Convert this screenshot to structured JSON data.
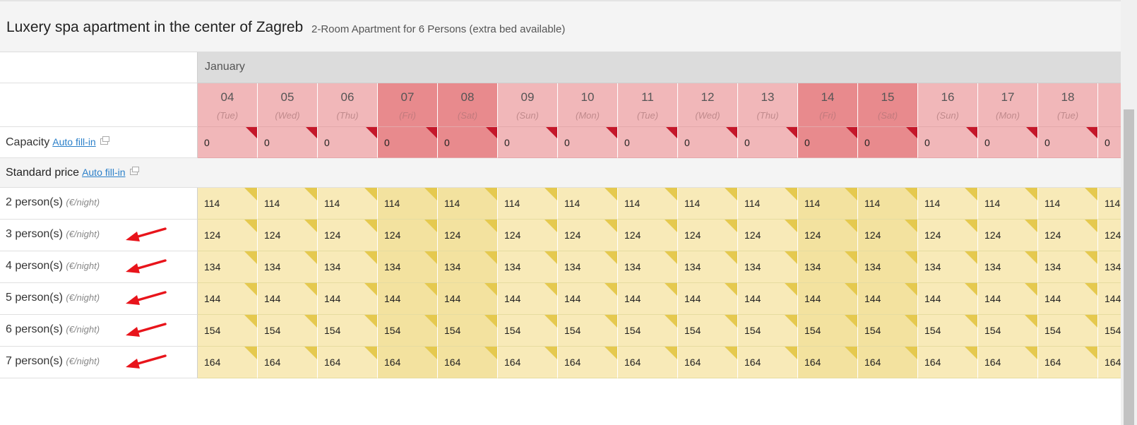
{
  "header": {
    "title": "Luxery spa apartment in the center of Zagreb",
    "subtitle": "2-Room Apartment for 6 Persons (extra bed available)"
  },
  "calendar": {
    "month": "January",
    "days": [
      {
        "d": "04",
        "wd": "(Tue)",
        "weekend": false
      },
      {
        "d": "05",
        "wd": "(Wed)",
        "weekend": false
      },
      {
        "d": "06",
        "wd": "(Thu)",
        "weekend": false
      },
      {
        "d": "07",
        "wd": "(Fri)",
        "weekend": true
      },
      {
        "d": "08",
        "wd": "(Sat)",
        "weekend": true
      },
      {
        "d": "09",
        "wd": "(Sun)",
        "weekend": false
      },
      {
        "d": "10",
        "wd": "(Mon)",
        "weekend": false
      },
      {
        "d": "11",
        "wd": "(Tue)",
        "weekend": false
      },
      {
        "d": "12",
        "wd": "(Wed)",
        "weekend": false
      },
      {
        "d": "13",
        "wd": "(Thu)",
        "weekend": false
      },
      {
        "d": "14",
        "wd": "(Fri)",
        "weekend": true
      },
      {
        "d": "15",
        "wd": "(Sat)",
        "weekend": true
      },
      {
        "d": "16",
        "wd": "(Sun)",
        "weekend": false
      },
      {
        "d": "17",
        "wd": "(Mon)",
        "weekend": false
      },
      {
        "d": "18",
        "wd": "(Tue)",
        "weekend": false
      },
      {
        "d": "",
        "wd": "",
        "weekend": false
      }
    ]
  },
  "capacity": {
    "label": "Capacity",
    "autofill": "Auto fill-in",
    "values": [
      "0",
      "0",
      "0",
      "0",
      "0",
      "0",
      "0",
      "0",
      "0",
      "0",
      "0",
      "0",
      "0",
      "0",
      "0",
      "0"
    ]
  },
  "standard_price": {
    "label": "Standard price",
    "autofill": "Auto fill-in"
  },
  "unit_label": "(€/night)",
  "price_rows": [
    {
      "label": "2 person(s)",
      "price": "114",
      "arrow": false
    },
    {
      "label": "3 person(s)",
      "price": "124",
      "arrow": true
    },
    {
      "label": "4 person(s)",
      "price": "134",
      "arrow": true
    },
    {
      "label": "5 person(s)",
      "price": "144",
      "arrow": true
    },
    {
      "label": "6 person(s)",
      "price": "154",
      "arrow": true
    },
    {
      "label": "7 person(s)",
      "price": "164",
      "arrow": true
    }
  ],
  "colors": {
    "weekday_red": "#f1b7b9",
    "weekend_red": "#e88a8d",
    "price_yellow": "#f8eab8",
    "price_weekend_yellow": "#f3e29f",
    "annotation_arrow": "#e8141b"
  }
}
